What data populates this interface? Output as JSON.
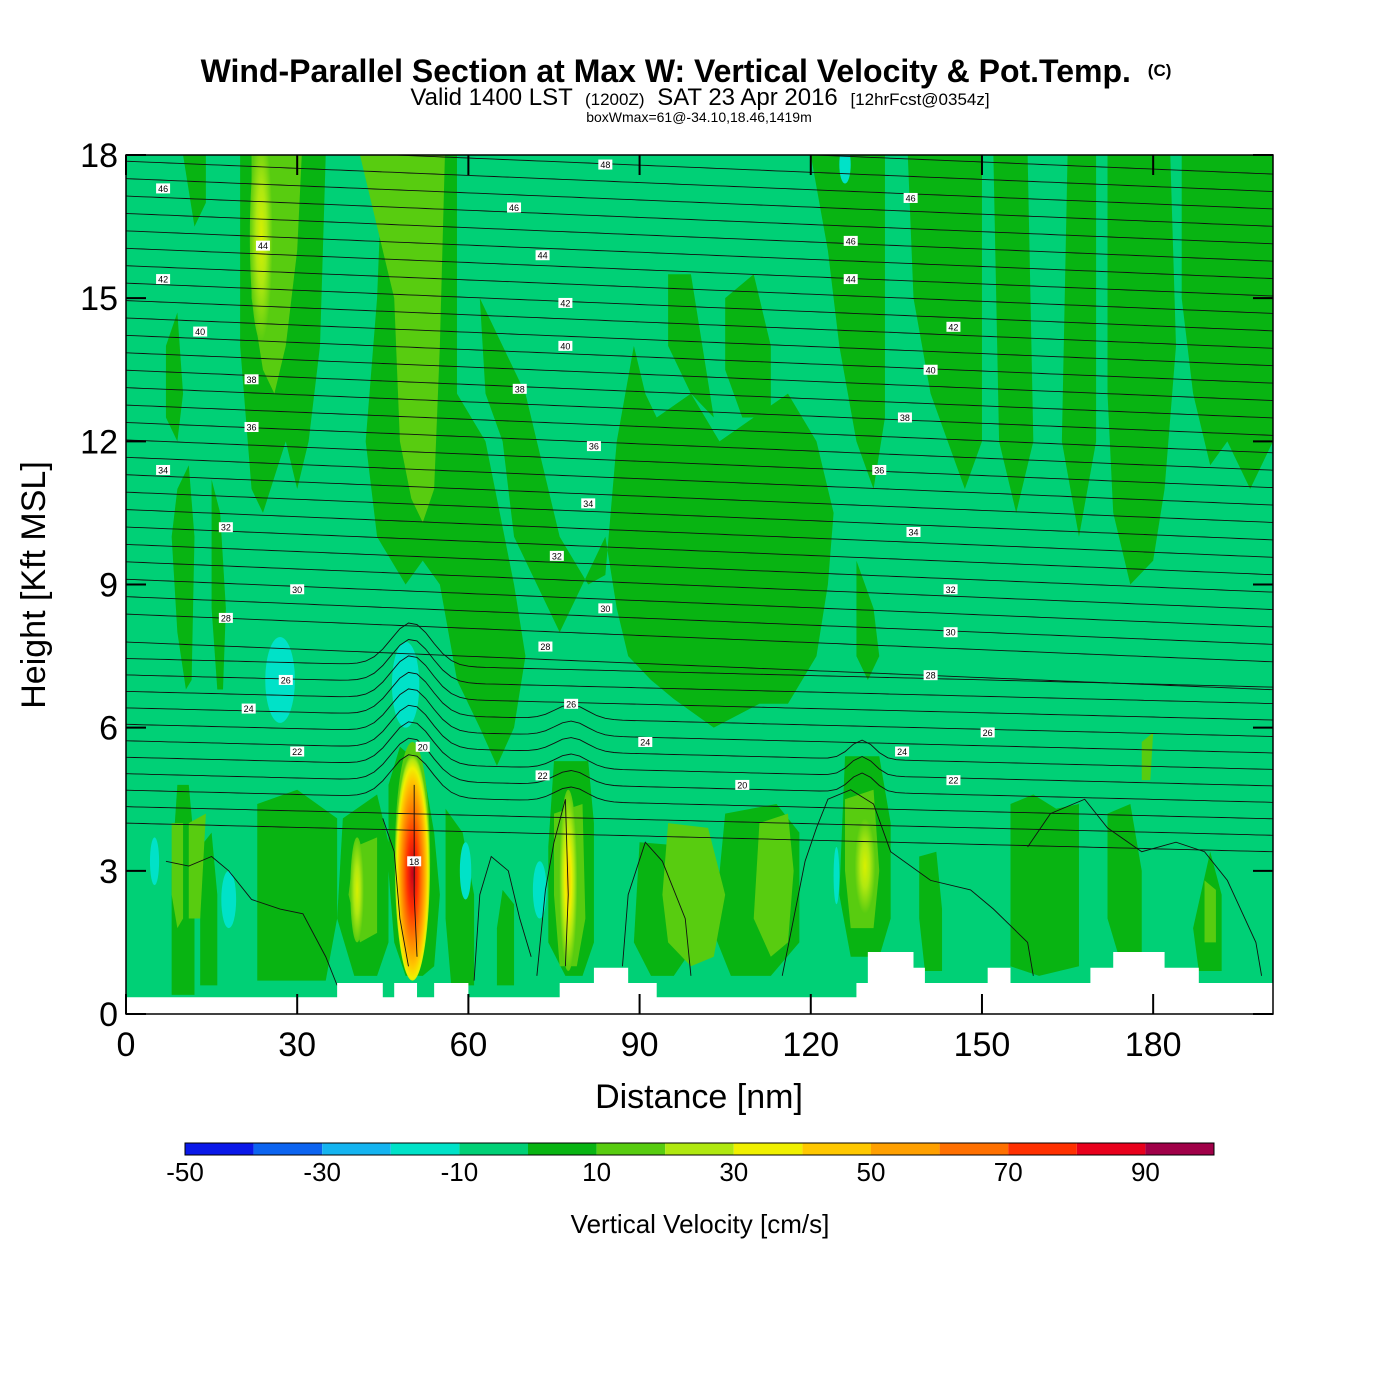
{
  "chart_data": {
    "type": "heatmap",
    "title": "Wind-Parallel Section at Max W: Vertical Velocity & Pot.Temp.",
    "title_mark": "(C)",
    "subtitle_parts": [
      "Valid 1400 LST",
      "(1200Z)",
      "SAT 23 Apr 2016",
      "[12hrFcst@0354z]"
    ],
    "subtitle2": "boxWmax=61@-34.10,18.46,1419m",
    "xlabel": "Distance [nm]",
    "ylabel": "Height [Kft MSL]",
    "xlim": [
      0,
      201
    ],
    "ylim": [
      0,
      18
    ],
    "xticks": [
      0,
      30,
      60,
      90,
      120,
      150,
      180
    ],
    "yticks": [
      0,
      3,
      6,
      9,
      12,
      15,
      18
    ],
    "colorbar": {
      "label": "Vertical Velocity [cm/s]",
      "bounds": [
        -50,
        -40,
        -30,
        -20,
        -10,
        0,
        10,
        20,
        30,
        40,
        50,
        60,
        70,
        80,
        90,
        100
      ],
      "tick_labels": [
        -50,
        -30,
        -10,
        10,
        30,
        50,
        70,
        90
      ],
      "colors": [
        "#0a18e8",
        "#0c64f0",
        "#14b4f0",
        "#00e2c8",
        "#00d076",
        "#08b412",
        "#58cc10",
        "#b0e810",
        "#f0f000",
        "#ffc800",
        "#ffa000",
        "#ff7000",
        "#ff3000",
        "#e8001c",
        "#a00048"
      ]
    },
    "background_value": "-10 to 0",
    "features": [
      {
        "name": "updraft-core",
        "x": 50,
        "z_range": [
          0.8,
          5.6
        ],
        "max_w": 90
      },
      {
        "name": "updraft-secondary",
        "x": 77.5,
        "z_range": [
          0.9,
          4.6
        ],
        "max_w": 40
      },
      {
        "name": "updraft-upper",
        "x": 23,
        "z_range": [
          13,
          18
        ],
        "max_w": 30
      },
      {
        "name": "updraft-tall",
        "x": 52,
        "z_range": [
          10,
          18
        ],
        "max_w": 20
      },
      {
        "name": "downdraft",
        "x": 27,
        "z_range": [
          6.3,
          7.8
        ],
        "min_w": -20
      },
      {
        "name": "downdraft",
        "x": 49,
        "z_range": [
          6.2,
          7.6
        ],
        "min_w": -20
      }
    ],
    "theta_labels": [
      {
        "v": "46",
        "x": 6.5,
        "z": 17.3
      },
      {
        "v": "46",
        "x": 68,
        "z": 16.9
      },
      {
        "v": "48",
        "x": 84,
        "z": 17.8
      },
      {
        "v": "46",
        "x": 137.5,
        "z": 17.1
      },
      {
        "v": "46",
        "x": 127,
        "z": 16.2
      },
      {
        "v": "44",
        "x": 24,
        "z": 16.1
      },
      {
        "v": "44",
        "x": 73,
        "z": 15.9
      },
      {
        "v": "44",
        "x": 127,
        "z": 15.4
      },
      {
        "v": "42",
        "x": 6.5,
        "z": 15.4
      },
      {
        "v": "42",
        "x": 77,
        "z": 14.9
      },
      {
        "v": "42",
        "x": 145,
        "z": 14.4
      },
      {
        "v": "40",
        "x": 13,
        "z": 14.3
      },
      {
        "v": "40",
        "x": 77,
        "z": 14.0
      },
      {
        "v": "40",
        "x": 141,
        "z": 13.5
      },
      {
        "v": "38",
        "x": 22,
        "z": 13.3
      },
      {
        "v": "38",
        "x": 69,
        "z": 13.1
      },
      {
        "v": "38",
        "x": 136.5,
        "z": 12.5
      },
      {
        "v": "36",
        "x": 22,
        "z": 12.3
      },
      {
        "v": "36",
        "x": 82,
        "z": 11.9
      },
      {
        "v": "36",
        "x": 132,
        "z": 11.4
      },
      {
        "v": "34",
        "x": 6.5,
        "z": 11.4
      },
      {
        "v": "34",
        "x": 81,
        "z": 10.7
      },
      {
        "v": "34",
        "x": 138,
        "z": 10.1
      },
      {
        "v": "32",
        "x": 17.5,
        "z": 10.2
      },
      {
        "v": "32",
        "x": 75.5,
        "z": 9.6
      },
      {
        "v": "32",
        "x": 144.5,
        "z": 8.9
      },
      {
        "v": "30",
        "x": 30,
        "z": 8.9
      },
      {
        "v": "30",
        "x": 84,
        "z": 8.5
      },
      {
        "v": "30",
        "x": 144.5,
        "z": 8.0
      },
      {
        "v": "28",
        "x": 17.5,
        "z": 8.3
      },
      {
        "v": "28",
        "x": 73.5,
        "z": 7.7
      },
      {
        "v": "28",
        "x": 141,
        "z": 7.1
      },
      {
        "v": "26",
        "x": 28,
        "z": 7.0
      },
      {
        "v": "26",
        "x": 78,
        "z": 6.5
      },
      {
        "v": "26",
        "x": 151,
        "z": 5.9
      },
      {
        "v": "24",
        "x": 21.5,
        "z": 6.4
      },
      {
        "v": "24",
        "x": 91,
        "z": 5.7
      },
      {
        "v": "24",
        "x": 136,
        "z": 5.5
      },
      {
        "v": "22",
        "x": 30,
        "z": 5.5
      },
      {
        "v": "22",
        "x": 73,
        "z": 5.0
      },
      {
        "v": "22",
        "x": 145,
        "z": 4.9
      },
      {
        "v": "20",
        "x": 52,
        "z": 5.6
      },
      {
        "v": "20",
        "x": 108,
        "z": 4.8
      },
      {
        "v": "18",
        "x": 50.5,
        "z": 3.2
      }
    ],
    "terrain": [
      [
        0,
        0.35
      ],
      [
        37,
        0.35
      ],
      [
        37,
        0.65
      ],
      [
        45,
        0.65
      ],
      [
        45,
        0.35
      ],
      [
        47,
        0.35
      ],
      [
        47,
        0.65
      ],
      [
        51,
        0.65
      ],
      [
        51,
        0.35
      ],
      [
        54,
        0.35
      ],
      [
        54,
        0.65
      ],
      [
        60,
        0.65
      ],
      [
        60,
        0.35
      ],
      [
        76,
        0.35
      ],
      [
        76,
        0.65
      ],
      [
        82,
        0.65
      ],
      [
        82,
        0.97
      ],
      [
        88,
        0.97
      ],
      [
        88,
        0.65
      ],
      [
        93,
        0.65
      ],
      [
        93,
        0.35
      ],
      [
        128,
        0.35
      ],
      [
        128,
        0.65
      ],
      [
        130,
        0.65
      ],
      [
        130,
        1.3
      ],
      [
        138,
        1.3
      ],
      [
        138,
        0.97
      ],
      [
        140,
        0.97
      ],
      [
        140,
        0.65
      ],
      [
        151,
        0.65
      ],
      [
        151,
        0.97
      ],
      [
        155,
        0.97
      ],
      [
        155,
        0.65
      ],
      [
        169,
        0.65
      ],
      [
        169,
        0.97
      ],
      [
        173,
        0.97
      ],
      [
        173,
        1.3
      ],
      [
        182,
        1.3
      ],
      [
        182,
        0.97
      ],
      [
        188,
        0.97
      ],
      [
        188,
        0.65
      ],
      [
        201,
        0.65
      ]
    ]
  }
}
